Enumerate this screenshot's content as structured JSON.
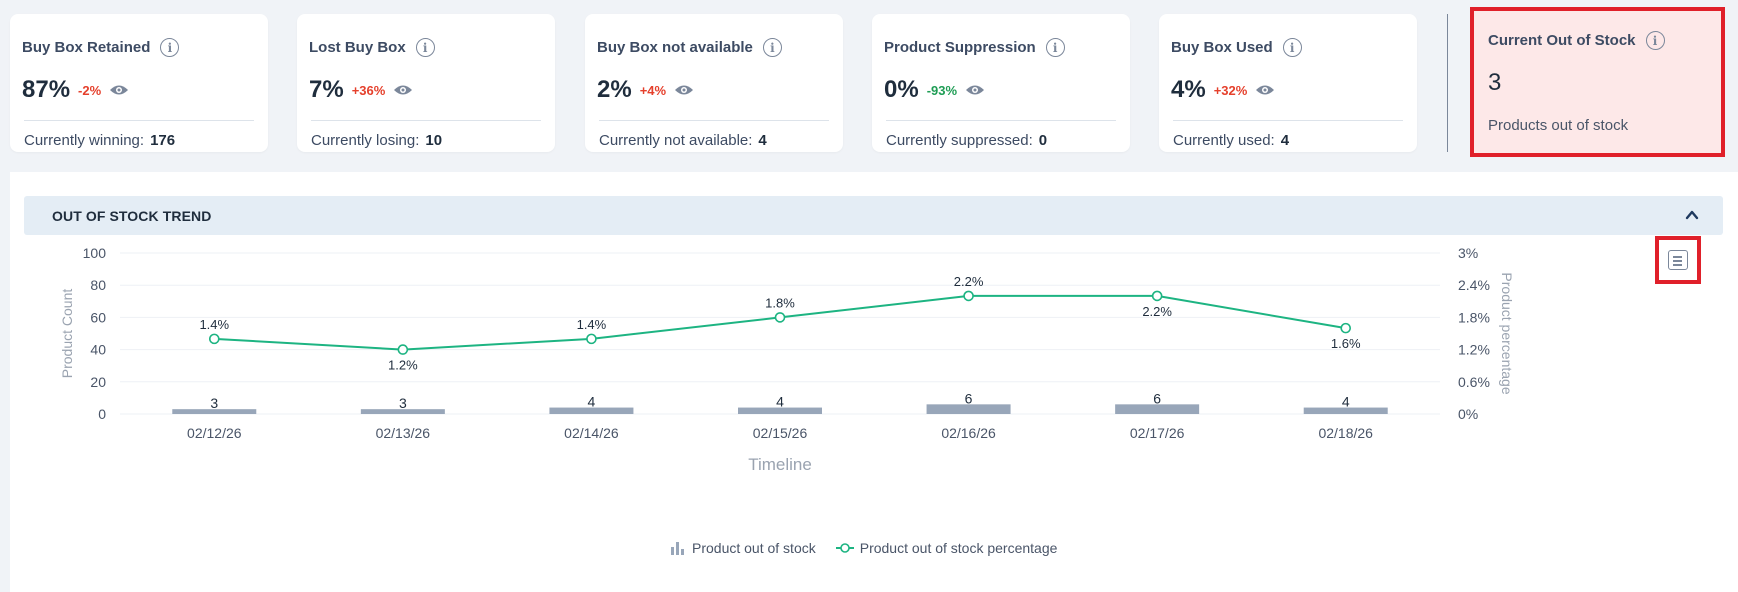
{
  "cards": [
    {
      "title": "Buy Box Retained",
      "value": "87%",
      "delta": "-2%",
      "delta_kind": "neg",
      "footer_label": "Currently winning:",
      "footer_value": "176"
    },
    {
      "title": "Lost Buy Box",
      "value": "7%",
      "delta": "+36%",
      "delta_kind": "pos-red",
      "footer_label": "Currently losing:",
      "footer_value": "10"
    },
    {
      "title": "Buy Box not available",
      "value": "2%",
      "delta": "+4%",
      "delta_kind": "pos-red",
      "footer_label": "Currently not available:",
      "footer_value": "4"
    },
    {
      "title": "Product Suppression",
      "value": "0%",
      "delta": "-93%",
      "delta_kind": "good",
      "footer_label": "Currently suppressed:",
      "footer_value": "0"
    },
    {
      "title": "Buy Box Used",
      "value": "4%",
      "delta": "+32%",
      "delta_kind": "pos-red",
      "footer_label": "Currently used:",
      "footer_value": "4"
    }
  ],
  "oos_card": {
    "title": "Current Out of Stock",
    "value": "3",
    "subtitle": "Products out of stock"
  },
  "trend": {
    "header": "OUT OF STOCK TREND"
  },
  "colors": {
    "bar": "#98a6b9",
    "line": "#1db482",
    "highlight": "#e0202a",
    "positive": "#1f9d55",
    "negative": "#e5402c"
  },
  "icons": {
    "info": "info-icon",
    "eye": "eye-icon",
    "collapse": "chevron-up-icon",
    "menu": "menu-icon"
  },
  "chart_data": {
    "type": "bar",
    "categories": [
      "02/12/26",
      "02/13/26",
      "02/14/26",
      "02/15/26",
      "02/16/26",
      "02/17/26",
      "02/18/26"
    ],
    "series": [
      {
        "name": "Product out of stock",
        "type": "bar",
        "axis": "left",
        "values": [
          3,
          3,
          4,
          4,
          6,
          6,
          4
        ],
        "labels": [
          "3",
          "3",
          "4",
          "4",
          "6",
          "6",
          "4"
        ]
      },
      {
        "name": "Product out of stock percentage",
        "type": "line",
        "axis": "right",
        "values": [
          1.4,
          1.2,
          1.4,
          1.8,
          2.2,
          2.2,
          1.6
        ],
        "labels": [
          "1.4%",
          "1.2%",
          "1.4%",
          "1.8%",
          "2.2%",
          "2.2%",
          "1.6%"
        ]
      }
    ],
    "xlabel": "Timeline",
    "ylabel": "Product Count",
    "ylabel_right": "Product percentage",
    "ylim": [
      0,
      100
    ],
    "yticks": [
      "0",
      "20",
      "40",
      "60",
      "80",
      "100"
    ],
    "ylim_right": [
      0,
      3
    ],
    "yticks_right": [
      "0%",
      "0.6%",
      "1.2%",
      "1.8%",
      "2.4%",
      "3%"
    ],
    "grid": true,
    "legend": "bottom-center"
  }
}
